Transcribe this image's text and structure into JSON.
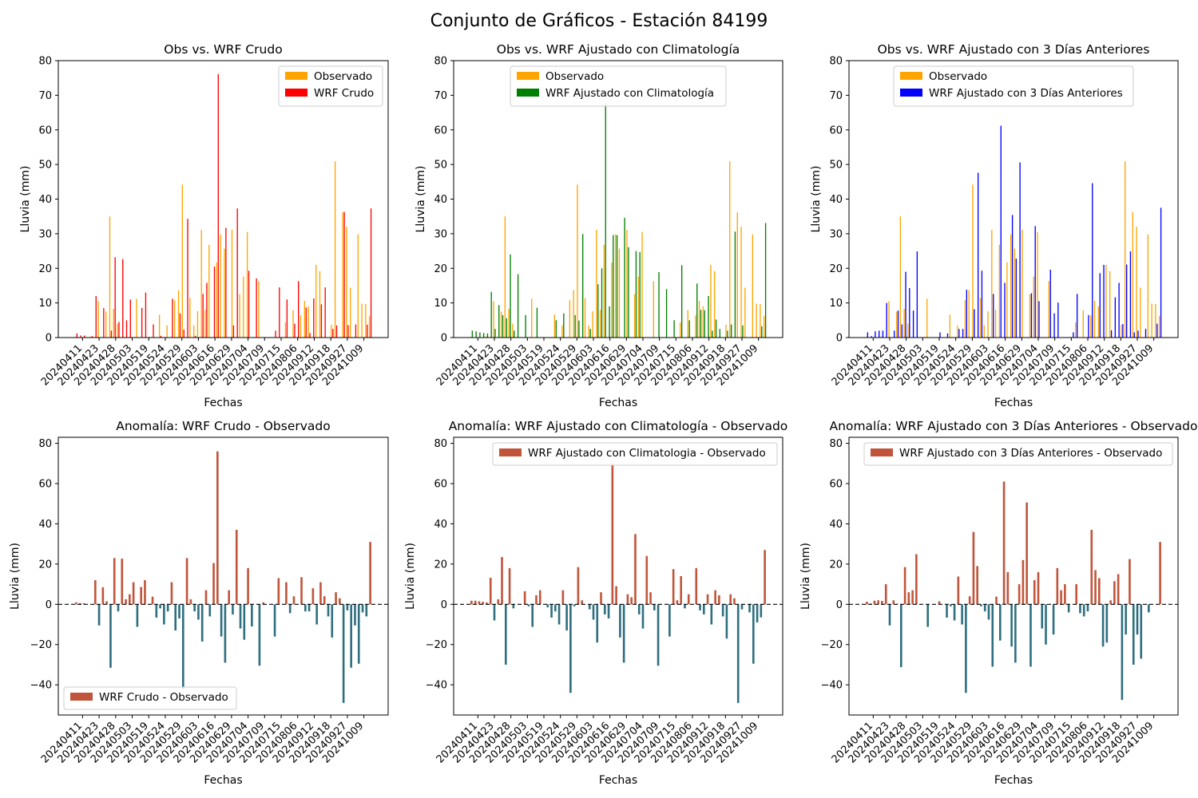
{
  "figure": {
    "title": "Conjunto de Gráficos - Estación 84199",
    "colors": {
      "observado": "#ffa500",
      "wrf_crudo": "#ff0000",
      "wrf_climatologia": "#008000",
      "wrf_3dias": "#0000ff",
      "anomalia_positiva": "#c1553b",
      "anomalia_negativa": "#2f6f80"
    }
  },
  "chart_data": [
    {
      "type": "bar",
      "title": "Obs vs. WRF Crudo",
      "xlabel": "Fechas",
      "ylabel": "Lluvia (mm)",
      "ylim": [
        0,
        80
      ],
      "yticks": [
        0,
        10,
        20,
        30,
        40,
        50,
        60,
        70,
        80
      ],
      "xtick_labels": [
        "20240411",
        "20240423",
        "20240428",
        "20240503",
        "20240519",
        "20240524",
        "20240529",
        "20240603",
        "20240616",
        "20240629",
        "20240704",
        "20240709",
        "20240715",
        "20240806",
        "20240912",
        "20240918",
        "20240927",
        "20241009"
      ],
      "legend_position": "upper right",
      "grid": false,
      "series": [
        {
          "name": "Observado",
          "values": [
            0.2,
            0,
            0,
            0,
            0.3,
            0,
            10.5,
            0,
            7.5,
            35.0,
            8.3,
            4.0,
            0,
            0,
            0,
            0,
            11.2,
            0,
            0,
            0,
            0,
            0,
            6.6,
            0,
            3.5,
            0,
            10.8,
            13.7,
            44.2,
            0,
            11.4,
            3.5,
            7.6,
            31.1,
            8.0,
            26.8,
            0,
            21.7,
            29.8,
            25.7,
            0,
            31.1,
            0,
            12.5,
            17.6,
            30.5,
            0,
            0,
            16.3,
            0,
            0,
            0,
            0,
            0,
            0,
            4.4,
            0,
            7.9,
            0,
            6.4,
            10.6,
            9.0,
            0,
            21.0,
            19.2,
            0,
            0,
            3.7,
            50.9,
            0,
            36.2,
            32.0,
            14.4,
            0,
            29.8,
            9.8,
            9.7,
            6.2
          ]
        },
        {
          "name": "WRF Crudo",
          "values": [
            1.2,
            0.6,
            0.6,
            0,
            0.4,
            12.0,
            0,
            8.5,
            0,
            2.0,
            23.2,
            4.5,
            22.7,
            5.0,
            11.0,
            0,
            0,
            8.6,
            13.0,
            0,
            3.8,
            0,
            0.5,
            0,
            0,
            11.2,
            0,
            7.0,
            2.3,
            34.3,
            0,
            0.5,
            0,
            12.6,
            15.8,
            0,
            20.5,
            76.1,
            0,
            31.7,
            0,
            3.5,
            37.3,
            0,
            0,
            19.3,
            0,
            17.1,
            0,
            0,
            0,
            0,
            2.0,
            14.5,
            0,
            11.0,
            0,
            4.0,
            16.3,
            0,
            8.7,
            1.3,
            11.3,
            0,
            9.6,
            14.5,
            0,
            2.5,
            3.5,
            0,
            36.3,
            3.6,
            0,
            3.8,
            0,
            0,
            3.7,
            37.3
          ]
        }
      ]
    },
    {
      "type": "bar",
      "title": "Obs vs. WRF Ajustado con Climatología",
      "xlabel": "Fechas",
      "ylabel": "Lluvia (mm)",
      "ylim": [
        0,
        80
      ],
      "yticks": [
        0,
        10,
        20,
        30,
        40,
        50,
        60,
        70,
        80
      ],
      "xtick_labels": [
        "20240411",
        "20240423",
        "20240428",
        "20240503",
        "20240519",
        "20240524",
        "20240529",
        "20240603",
        "20240616",
        "20240629",
        "20240704",
        "20240709",
        "20240715",
        "20240806",
        "20240912",
        "20240918",
        "20240927",
        "20241009"
      ],
      "legend_position": "upper center",
      "grid": false,
      "series": [
        {
          "name": "Observado",
          "values": [
            0.2,
            0,
            0,
            0,
            0.3,
            0,
            10.5,
            0,
            7.5,
            35.0,
            8.3,
            4.0,
            0,
            0,
            0,
            0,
            11.2,
            0,
            0,
            0,
            0,
            0,
            6.6,
            0,
            3.5,
            0,
            10.8,
            13.7,
            44.2,
            0,
            11.4,
            3.5,
            7.6,
            31.1,
            8.0,
            26.8,
            0,
            21.7,
            29.8,
            25.7,
            0,
            31.1,
            0,
            12.5,
            17.6,
            30.5,
            0,
            0,
            16.3,
            0,
            0,
            0,
            0,
            0,
            0,
            4.4,
            0,
            7.9,
            0,
            6.4,
            10.6,
            9.0,
            0,
            21.0,
            19.2,
            0,
            0,
            3.7,
            50.9,
            0,
            36.2,
            32.0,
            14.4,
            0,
            29.8,
            9.8,
            9.7,
            6.2
          ]
        },
        {
          "name": "WRF Ajustado con Climatología",
          "values": [
            2.0,
            1.8,
            1.5,
            1.3,
            1.2,
            13.2,
            2.5,
            9.4,
            6.5,
            5.6,
            24.0,
            2.0,
            18.3,
            0,
            6.5,
            0,
            0,
            8.6,
            0,
            0,
            0,
            0,
            5.0,
            0,
            7.0,
            0,
            0,
            6.5,
            4.9,
            29.9,
            0,
            2.5,
            0,
            15.4,
            20.0,
            67.8,
            9.0,
            29.6,
            29.6,
            0,
            34.6,
            26.1,
            0,
            25.0,
            24.7,
            0,
            0,
            0,
            0,
            18.9,
            0,
            14.0,
            0,
            5.0,
            0,
            20.9,
            0,
            5.0,
            0,
            15.6,
            8.0,
            7.9,
            12.0,
            2.0,
            5.2,
            2.5,
            0,
            2.0,
            3.8,
            30.6,
            0,
            3.5,
            0,
            0,
            0,
            0,
            3.3,
            33.1
          ]
        }
      ]
    },
    {
      "type": "bar",
      "title": "Obs vs. WRF Ajustado con 3 Días Anteriores",
      "xlabel": "Fechas",
      "ylabel": "Lluvia (mm)",
      "ylim": [
        0,
        80
      ],
      "yticks": [
        0,
        10,
        20,
        30,
        40,
        50,
        60,
        70,
        80
      ],
      "xtick_labels": [
        "20240411",
        "20240423",
        "20240428",
        "20240503",
        "20240519",
        "20240524",
        "20240529",
        "20240603",
        "20240616",
        "20240629",
        "20240704",
        "20240709",
        "20240715",
        "20240806",
        "20240912",
        "20240918",
        "20240927",
        "20241009"
      ],
      "legend_position": "upper center",
      "grid": false,
      "series": [
        {
          "name": "Observado",
          "values": [
            0.2,
            0,
            0,
            0,
            0.3,
            0,
            10.5,
            0,
            7.5,
            35.0,
            8.3,
            4.0,
            0,
            0,
            0,
            0,
            11.2,
            0,
            0,
            0,
            0,
            0,
            6.6,
            0,
            3.5,
            0,
            10.8,
            13.7,
            44.2,
            0,
            11.4,
            3.5,
            7.6,
            31.1,
            8.0,
            26.8,
            0,
            21.7,
            29.8,
            25.7,
            0,
            31.1,
            0,
            12.5,
            17.6,
            30.5,
            0,
            0,
            16.3,
            0,
            0,
            0,
            0,
            0,
            0,
            4.4,
            0,
            7.9,
            0,
            6.4,
            10.6,
            9.0,
            0,
            21.0,
            19.2,
            0,
            0,
            3.7,
            50.9,
            0,
            36.2,
            32.0,
            14.4,
            0,
            29.8,
            9.8,
            9.7,
            6.2
          ]
        },
        {
          "name": "WRF Ajustado con 3 Días Anteriores",
          "values": [
            1.5,
            0.4,
            1.8,
            2.0,
            2.0,
            10.0,
            0,
            2.0,
            7.8,
            3.8,
            19.0,
            14.3,
            7.8,
            24.9,
            0,
            0,
            0,
            0,
            0,
            1.5,
            0,
            1.2,
            0,
            0,
            2.5,
            2.5,
            13.8,
            0,
            8.2,
            47.6,
            19.3,
            0,
            0,
            12.6,
            0,
            61.2,
            15.8,
            0,
            35.4,
            22.8,
            50.6,
            0,
            0,
            12.8,
            32.2,
            10.5,
            0,
            0,
            19.6,
            7.0,
            10.1,
            0,
            0,
            0,
            1.5,
            12.6,
            0,
            0,
            6.5,
            44.6,
            0,
            18.6,
            21.0,
            0,
            2.1,
            11.6,
            15.8,
            3.9,
            21.1,
            24.9,
            1.5,
            2.0,
            0,
            2.5,
            0,
            0,
            4.0,
            37.5
          ]
        }
      ]
    },
    {
      "type": "bar",
      "title": "Anomalía: WRF Crudo - Observado",
      "xlabel": "Fechas",
      "ylabel": "Lluvia (mm)",
      "ylim": [
        -55,
        83
      ],
      "yticks": [
        -40,
        -20,
        0,
        20,
        40,
        60,
        80
      ],
      "xtick_labels": [
        "20240411",
        "20240423",
        "20240428",
        "20240503",
        "20240519",
        "20240524",
        "20240529",
        "20240603",
        "20240616",
        "20240629",
        "20240704",
        "20240709",
        "20240715",
        "20240806",
        "20240912",
        "20240918",
        "20240927",
        "20241009"
      ],
      "legend_position": "lower left",
      "grid": false,
      "zero_line": "dashed",
      "series": [
        {
          "name": "WRF Crudo - Observado",
          "values": [
            1.0,
            0.6,
            0.6,
            0,
            0.1,
            12.0,
            -10.5,
            8.5,
            1.5,
            -31.5,
            23.0,
            -3.5,
            22.7,
            2.5,
            5.0,
            11.0,
            -11.2,
            8.6,
            12.0,
            0,
            3.8,
            -6.6,
            -2.0,
            -10.0,
            -3.5,
            11.0,
            -13.0,
            -7.0,
            -42.0,
            23.0,
            2.5,
            -3.5,
            -7.6,
            -18.5,
            7.0,
            -6.0,
            20.5,
            76.0,
            -16.0,
            -29.0,
            7.0,
            -5.0,
            37.0,
            -12.0,
            -17.6,
            18.0,
            -11.0,
            0,
            -30.5,
            1.0,
            0,
            0,
            -16.0,
            13.0,
            0,
            11.0,
            -4.4,
            4.0,
            0,
            13.5,
            -3.5,
            -3.5,
            8.0,
            -10.0,
            11.0,
            4.0,
            -6.0,
            -16.5,
            6.0,
            3.0,
            -49.0,
            -3.0,
            -31.5,
            -10.5,
            -29.5,
            -4.0,
            -6.0,
            31.0
          ]
        }
      ]
    },
    {
      "type": "bar",
      "title": "Anomalía: WRF Ajustado con Climatología - Observado",
      "xlabel": "Fechas",
      "ylabel": "Lluvia (mm)",
      "ylim": [
        -55,
        83
      ],
      "yticks": [
        -40,
        -20,
        0,
        20,
        40,
        60,
        80
      ],
      "xtick_labels": [
        "20240411",
        "20240423",
        "20240428",
        "20240503",
        "20240519",
        "20240524",
        "20240529",
        "20240603",
        "20240616",
        "20240629",
        "20240704",
        "20240709",
        "20240715",
        "20240806",
        "20240912",
        "20240918",
        "20240927",
        "20241009"
      ],
      "legend_position": "upper right",
      "grid": false,
      "zero_line": "dashed",
      "series": [
        {
          "name": "WRF Ajustado con Climatologia - Observado",
          "values": [
            1.8,
            1.8,
            1.5,
            1.3,
            0.9,
            13.2,
            -8.0,
            2.5,
            23.5,
            -30.0,
            18.0,
            -2.0,
            0,
            0,
            6.5,
            -1.0,
            -11.2,
            4.5,
            7.0,
            0,
            -1.5,
            -6.6,
            -3.5,
            -10.0,
            7.0,
            -13.0,
            -44.0,
            -1.0,
            18.5,
            2.0,
            0,
            -2.5,
            -7.6,
            -19.0,
            6.0,
            -5.0,
            -7.0,
            70.0,
            9.0,
            -16.5,
            -29.0,
            5.0,
            3.5,
            34.9,
            -5.0,
            -12.0,
            24.0,
            6.0,
            -3.0,
            -30.5,
            0,
            0,
            -16.0,
            17.5,
            2.0,
            14.0,
            -2.0,
            5.0,
            0,
            18.0,
            -3.0,
            -5.0,
            5.0,
            -10.0,
            7.0,
            4.5,
            -6.0,
            -17.0,
            5.0,
            3.0,
            -49.0,
            -2.5,
            0,
            -4.0,
            -29.5,
            -9.0,
            -6.5,
            27.0
          ]
        }
      ]
    },
    {
      "type": "bar",
      "title": "Anomalía: WRF Ajustado con 3 Días Anteriores - Observado",
      "xlabel": "Fechas",
      "ylabel": "Lluvia (mm)",
      "ylim": [
        -55,
        83
      ],
      "yticks": [
        -40,
        -20,
        0,
        20,
        40,
        60,
        80
      ],
      "xtick_labels": [
        "20240411",
        "20240423",
        "20240428",
        "20240503",
        "20240519",
        "20240524",
        "20240529",
        "20240603",
        "20240616",
        "20240629",
        "20240704",
        "20240709",
        "20240715",
        "20240806",
        "20240912",
        "20240918",
        "20240927",
        "20241009"
      ],
      "legend_position": "upper right",
      "grid": false,
      "zero_line": "dashed",
      "series": [
        {
          "name": "WRF Ajustado con 3 Días Anteriores - Observado",
          "values": [
            1.3,
            0.4,
            1.8,
            2.0,
            1.7,
            10.0,
            -10.5,
            2.0,
            0.3,
            -31.2,
            18.5,
            6.0,
            7.0,
            24.9,
            0,
            0,
            -11.2,
            0,
            0,
            1.5,
            0,
            -6.6,
            -1.0,
            -8.0,
            13.8,
            -10.0,
            -44.0,
            4.0,
            36.0,
            19.0,
            -1.0,
            -3.5,
            -7.6,
            -31.0,
            3.8,
            -18.0,
            61.0,
            16.0,
            -21.0,
            -29.0,
            10.0,
            22.0,
            50.6,
            -31.0,
            12.0,
            16.0,
            -12.0,
            -20.0,
            0,
            -15.0,
            18.0,
            7.0,
            10.0,
            -4.0,
            0,
            10.0,
            -4.4,
            -6.0,
            -3.5,
            37.0,
            17.0,
            13.0,
            -21.0,
            -19.0,
            2.0,
            11.5,
            15.0,
            -47.5,
            -15.0,
            22.5,
            -30.0,
            -15.0,
            -27.0,
            0,
            -4.0,
            0,
            0,
            31.0
          ]
        }
      ]
    }
  ]
}
